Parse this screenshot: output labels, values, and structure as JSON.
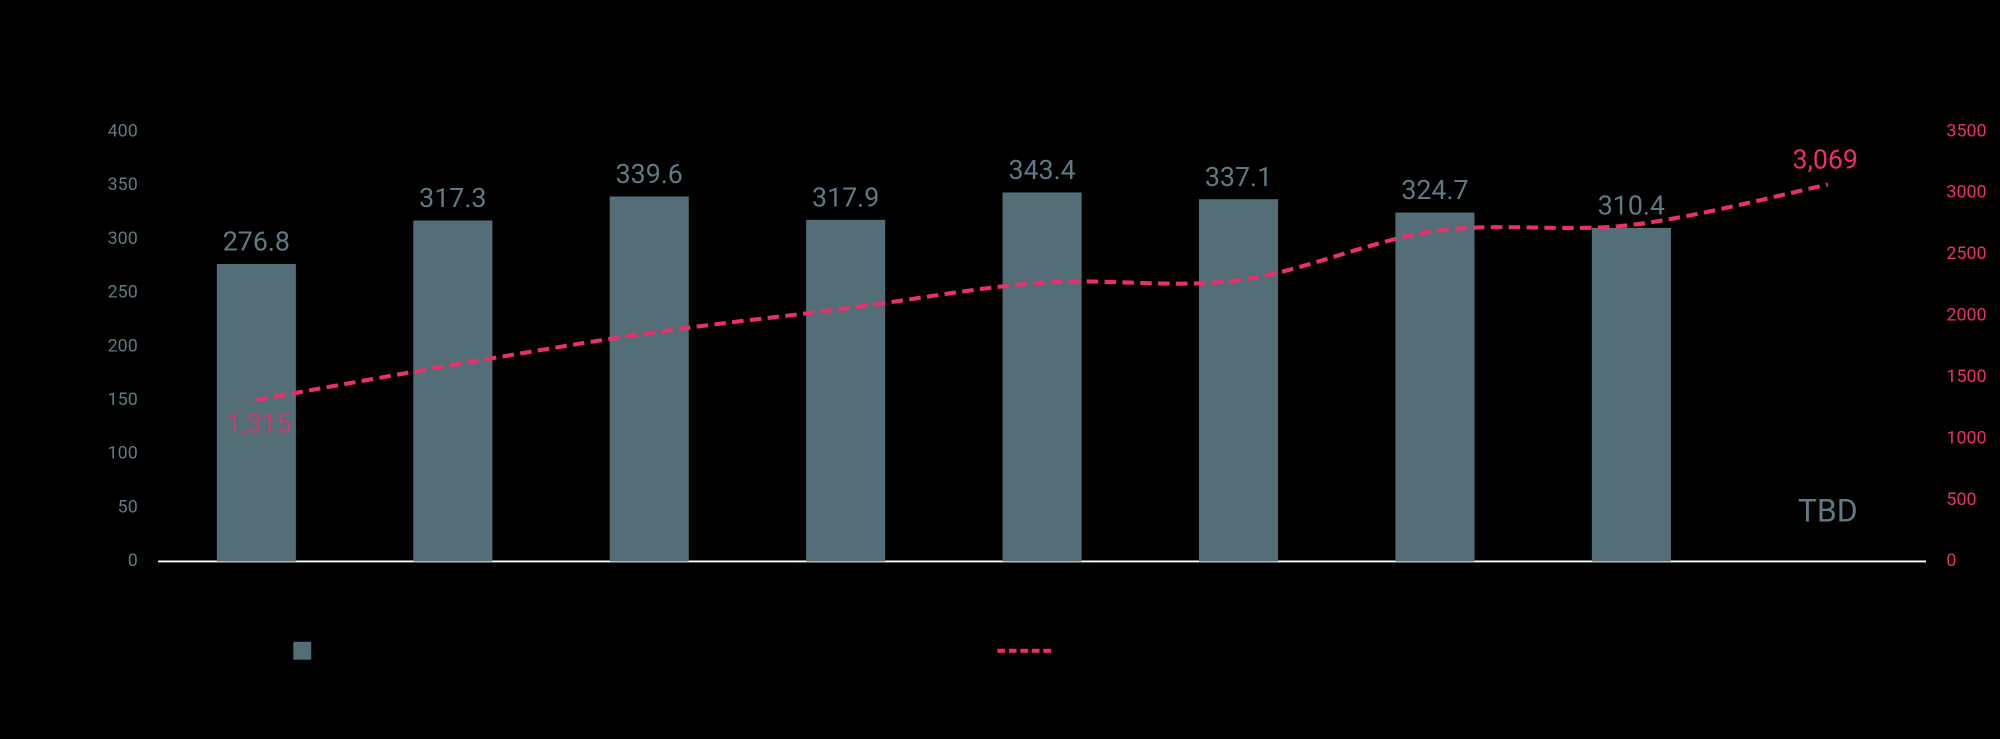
{
  "chart_data": {
    "type": "bar",
    "categories": [
      null,
      null,
      null,
      null,
      null,
      null,
      null,
      null,
      null
    ],
    "series": [
      {
        "type": "bar",
        "color": "#546e78",
        "values": [
          276.8,
          317.3,
          339.6,
          317.9,
          343.4,
          337.1,
          324.7,
          310.4,
          null
        ]
      },
      {
        "type": "line",
        "axis": "y2",
        "color": "#ea2f6a",
        "dashed": true,
        "values": [
          1315,
          1600,
          1860,
          2060,
          2270,
          2290,
          2690,
          2740,
          3069
        ],
        "value_labels": [
          "1,315",
          null,
          null,
          null,
          null,
          null,
          null,
          null,
          "3,069"
        ]
      }
    ],
    "annotation": "TBD",
    "ylim": [
      0,
      400
    ],
    "yticks": [
      0,
      50,
      100,
      150,
      200,
      250,
      300,
      350,
      400
    ],
    "y2lim": [
      0,
      3500
    ],
    "y2ticks": [
      0,
      500,
      1000,
      1500,
      2000,
      2500,
      3000,
      3500
    ],
    "axis_color": "#5f7a83",
    "y2_axis_color": "#ea2f6a"
  }
}
